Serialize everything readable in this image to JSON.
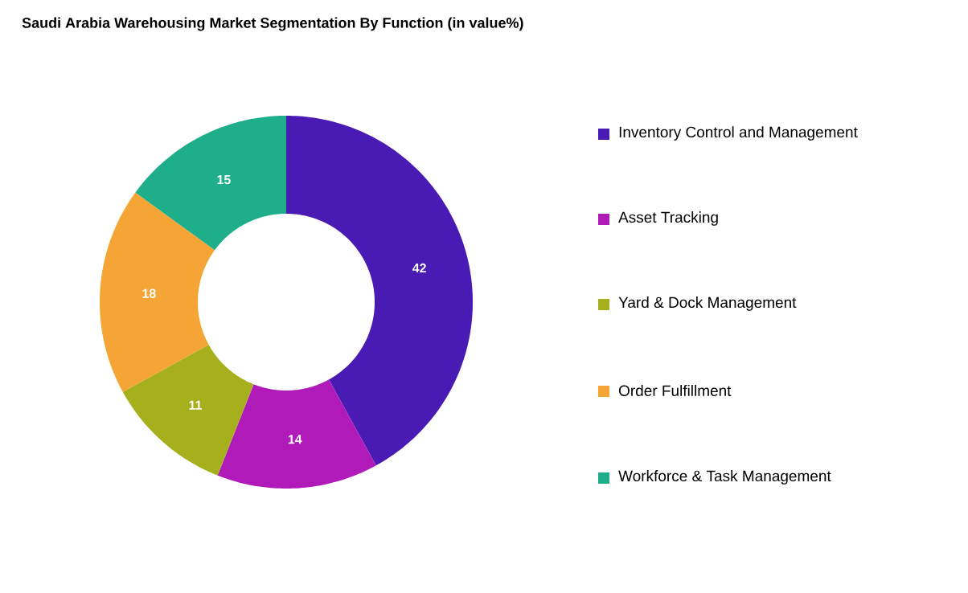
{
  "chart_data": {
    "type": "donut",
    "title": "Saudi Arabia Warehousing Market Segmentation By Function (in value%)",
    "categories": [
      "Inventory Control and Management",
      "Asset Tracking",
      "Yard & Dock Management",
      "Order Fulfillment",
      "Workforce & Task Management"
    ],
    "values": [
      42,
      14,
      11,
      18,
      15
    ],
    "colors": [
      "#4a1ab4",
      "#b01ab8",
      "#a5b01c",
      "#f5a535",
      "#1fae8a"
    ],
    "data_labels": true,
    "legend": "right"
  }
}
